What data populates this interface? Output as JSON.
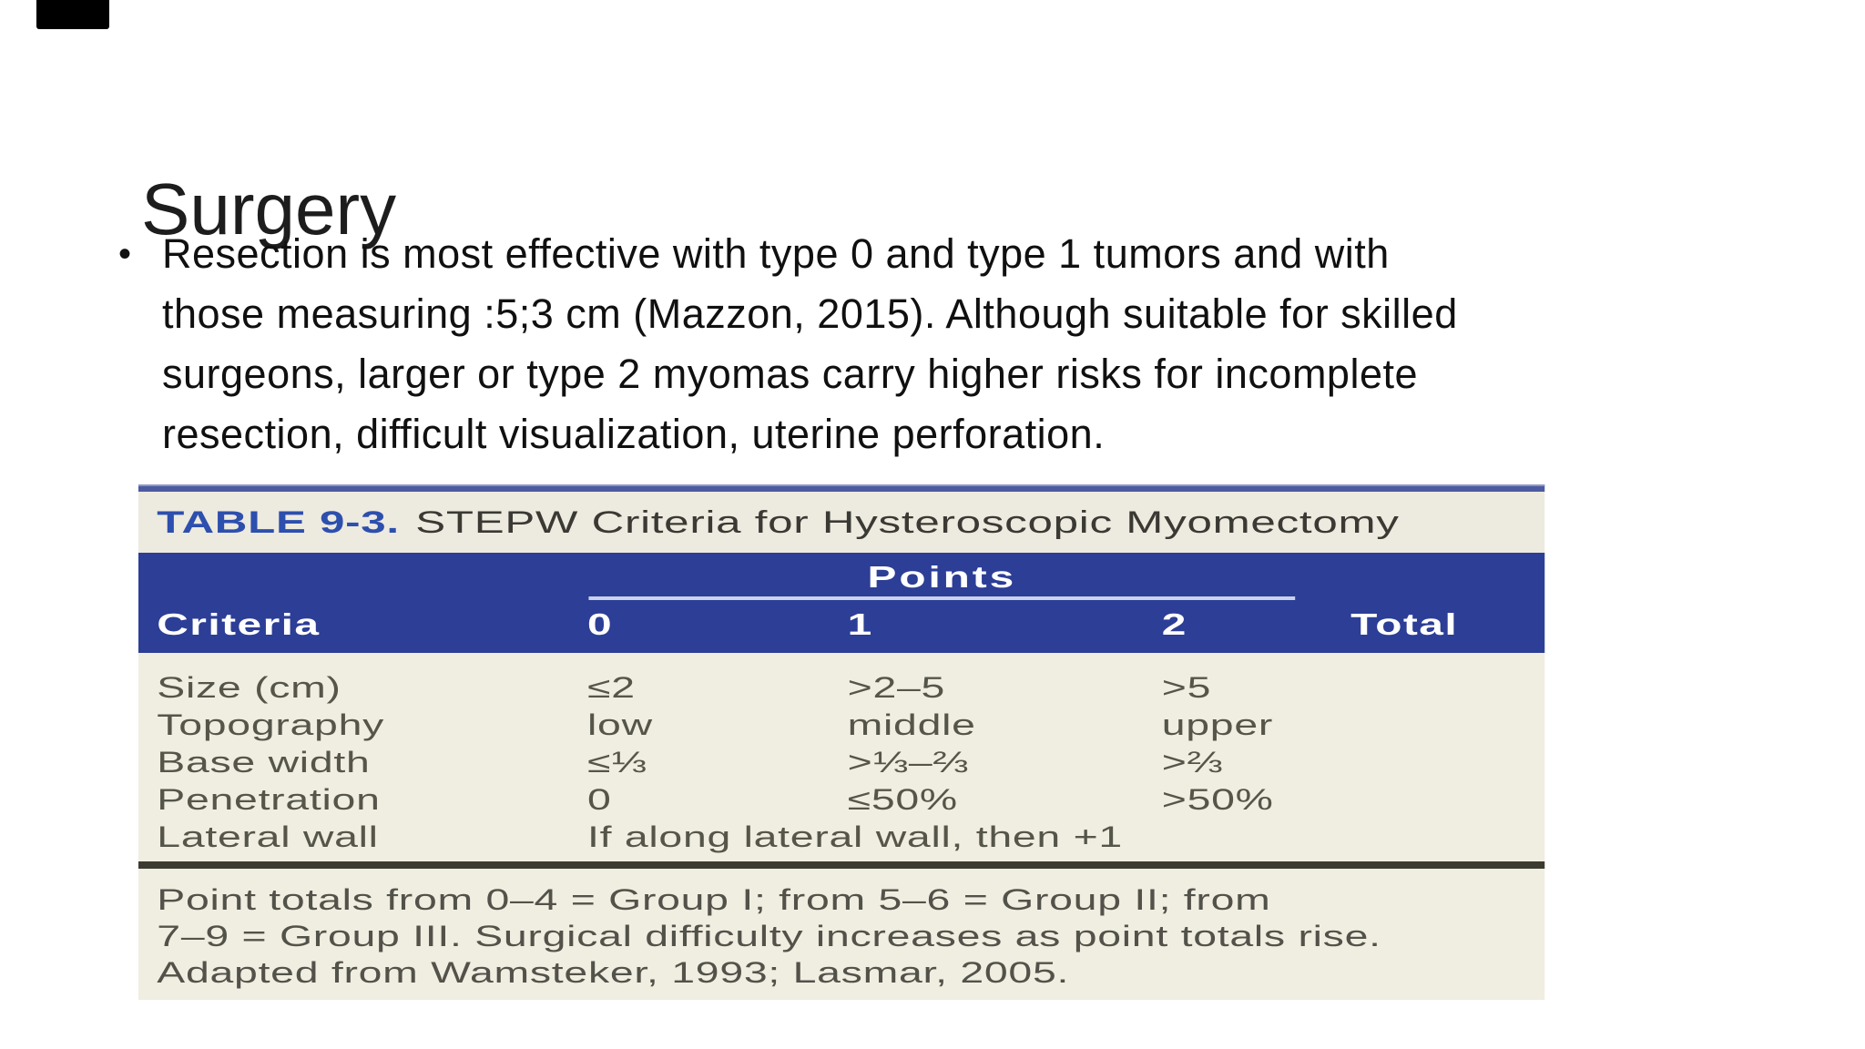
{
  "slide": {
    "title": "Surgery",
    "bullet_char": "•",
    "bullet_text": "Resection is most effective with type 0 and type 1 tumors and with\nthose measuring :5;3 cm (Mazzon, 2015). Although suitable for skilled\nsurgeons, larger or type 2 myomas carry higher risks for incomplete\nresection, difficult visualization, uterine perforation."
  },
  "table": {
    "label": "TABLE 9-3.",
    "title": "STEPW Criteria for Hysteroscopic Myomectomy",
    "points_header": "Points",
    "columns": {
      "criteria": "Criteria",
      "p0": "0",
      "p1": "1",
      "p2": "2",
      "total": "Total"
    },
    "rows": [
      {
        "criteria": "Size (cm)",
        "p0": "≤2",
        "p1": ">2–5",
        "p2": ">5"
      },
      {
        "criteria": "Topography",
        "p0": "low",
        "p1": "middle",
        "p2": "upper"
      },
      {
        "criteria": "Base width",
        "p0": "≤⅓",
        "p1": ">⅓–⅔",
        "p2": ">⅔"
      },
      {
        "criteria": "Penetration",
        "p0": "0",
        "p1": "≤50%",
        "p2": ">50%"
      },
      {
        "criteria": "Lateral wall",
        "span": "If along lateral wall, then +1"
      }
    ],
    "footnote": "Point totals from 0–4 = Group I; from 5–6 = Group II; from\n7–9 = Group III. Surgical difficulty increases as point totals rise.\nAdapted from Wamsteker, 1993; Lasmar, 2005.",
    "colors": {
      "header_blue": "#2c3e96",
      "caption_label_blue": "#2d4fae",
      "caption_background": "#edeadf",
      "body_background": "#f0eee1",
      "top_rule": "#4c5ba1",
      "bottom_rule": "#3b3b32",
      "points_underline": "#c9d2ec",
      "body_text": "#56554a"
    }
  }
}
